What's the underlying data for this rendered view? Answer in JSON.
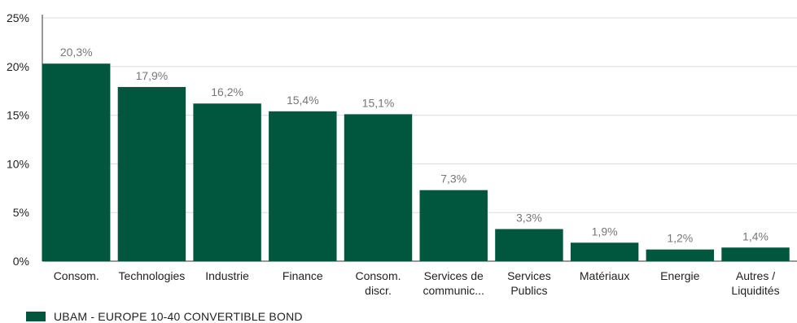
{
  "chart_data": {
    "type": "bar",
    "categories": [
      [
        "Consom."
      ],
      [
        "Technologies"
      ],
      [
        "Industrie"
      ],
      [
        "Finance"
      ],
      [
        "Consom.",
        "discr."
      ],
      [
        "Services de",
        "communic..."
      ],
      [
        "Services",
        "Publics"
      ],
      [
        "Matériaux"
      ],
      [
        "Energie"
      ],
      [
        "Autres /",
        "Liquidités"
      ]
    ],
    "series": [
      {
        "name": "UBAM - EUROPE 10-40 CONVERTIBLE BOND",
        "values": [
          20.3,
          17.9,
          16.2,
          15.4,
          15.1,
          7.3,
          3.3,
          1.9,
          1.2,
          1.4
        ],
        "labels": [
          "20,3%",
          "17,9%",
          "16,2%",
          "15,4%",
          "15,1%",
          "7,3%",
          "3,3%",
          "1,9%",
          "1,2%",
          "1,4%"
        ],
        "color": "#00573d"
      }
    ],
    "yticks": [
      0,
      5,
      10,
      15,
      20,
      25
    ],
    "ytick_labels": [
      "0%",
      "5%",
      "10%",
      "15%",
      "20%",
      "25%"
    ],
    "ylim": [
      0,
      25
    ],
    "grid": true,
    "legend_position": "bottom-left"
  }
}
